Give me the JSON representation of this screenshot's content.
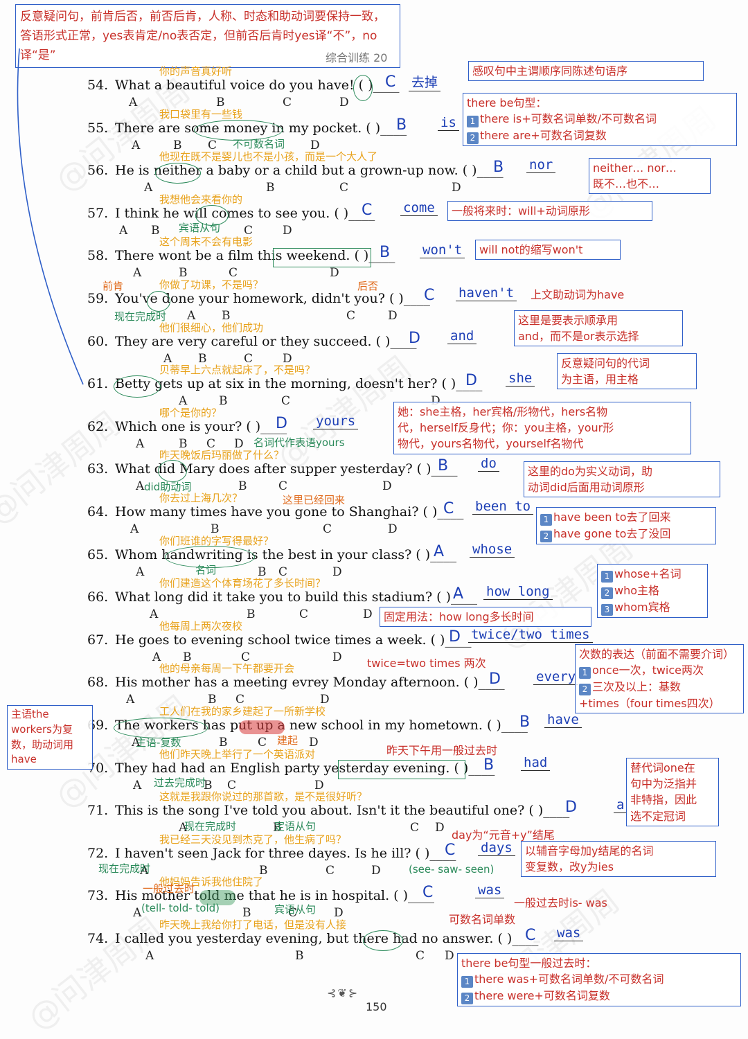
{
  "header": {
    "rule_note": "反意疑问句，前肯后否，前否后肯，人称、时态和助动词要保持一致，答语形式正常，yes表肯定/no表否定，但前否后肯时yes译“不”，no译“是”",
    "section_title": "综合训练 20"
  },
  "watermark_text": "@问津周周",
  "questions": [
    {
      "num": "54.",
      "text": "What a beautiful voice do you have! (   )____",
      "choice": "C",
      "fill": "去掉",
      "trans": "你的声音真好听",
      "letters": [
        "A",
        "B",
        "C",
        "D"
      ]
    },
    {
      "num": "55.",
      "text": "There are some money in my pocket. (   )____",
      "choice": "B",
      "fill": "is",
      "trans": "我口袋里有一些钱",
      "letters": [
        "A",
        "B",
        "C",
        "D"
      ]
    },
    {
      "num": "56.",
      "text": "He is neither a baby or a child but a grown-up now. (   )____",
      "choice": "B",
      "fill": "nor",
      "trans": "他现在既不是婴儿也不是小孩，而是一个大人了",
      "letters": [
        "A",
        "B",
        "C",
        "D"
      ]
    },
    {
      "num": "57.",
      "text": "I think he will comes to see you. (   )____",
      "choice": "C",
      "fill": "come",
      "trans": "我想他会来看你的",
      "letters": [
        "A",
        "B",
        "C",
        "D"
      ]
    },
    {
      "num": "58.",
      "text": "There wont be a film this weekend. (   )____",
      "choice": "B",
      "fill": "won't",
      "trans": "这个周末不会有电影",
      "letters": [
        "A",
        "B",
        "C",
        "D"
      ]
    },
    {
      "num": "59.",
      "text": "You've done your homework, didn't you? (   )____",
      "choice": "C",
      "fill": "haven't",
      "trans": "你做了功课，不是吗？",
      "letters": [
        "A",
        "B",
        "C",
        "D"
      ]
    },
    {
      "num": "60.",
      "text": "They are very careful or they succeed. (   )____",
      "choice": "D",
      "fill": "and",
      "trans": "他们很细心，他们成功",
      "letters": [
        "A",
        "B",
        "C",
        "D"
      ]
    },
    {
      "num": "61.",
      "text": "Betty gets up at six in the morning, doesn't her? (   )____",
      "choice": "D",
      "fill": "she",
      "trans": "贝蒂早上六点就起床了，不是吗？",
      "letters": [
        "A",
        "B",
        "C",
        "D"
      ]
    },
    {
      "num": "62.",
      "text": "Which one is your? (   )____",
      "choice": "D",
      "fill": "yours",
      "trans": "哪个是你的？",
      "letters": [
        "A",
        "B",
        "C",
        "D"
      ]
    },
    {
      "num": "63.",
      "text": "What did Mary does after supper yesterday? (   )____",
      "choice": "B",
      "fill": "do",
      "trans": "昨天晚饭后玛丽做了什么？",
      "letters": [
        "A",
        "B",
        "C",
        "D"
      ]
    },
    {
      "num": "64.",
      "text": "How many times have you gone to Shanghai? (   )____",
      "choice": "C",
      "fill": "been to",
      "trans": "你去过上海几次？",
      "letters": [
        "A",
        "B",
        "C",
        "D"
      ]
    },
    {
      "num": "65.",
      "text": "Whom handwriting is the best in your class? (   )____",
      "choice": "A",
      "fill": "whose",
      "trans": "你们班谁的字写得最好？",
      "letters": [
        "A",
        "B",
        "C",
        "D"
      ]
    },
    {
      "num": "66.",
      "text": "What long did it take you to build this stadium? (   )____",
      "choice": "A",
      "fill": "how long",
      "trans": "你们建造这个体育场花了多长时间？",
      "letters": [
        "A",
        "B",
        "C",
        "D"
      ]
    },
    {
      "num": "67.",
      "text": "He goes to evening school twice times a week. (   )____",
      "choice": "D",
      "fill": "twice/two times",
      "trans": "他每周上两次夜校",
      "letters": [
        "A",
        "B",
        "C",
        "D"
      ]
    },
    {
      "num": "68.",
      "text": "His mother has a meeting evrey Monday afternoon. (   )____",
      "choice": "D",
      "fill": "every",
      "trans": "他的母亲每周一下午都要开会",
      "letters": [
        "A",
        "B",
        "C",
        "D"
      ]
    },
    {
      "num": "69.",
      "text": "The workers has put up a new school in my hometown. (   )____",
      "choice": "B",
      "fill": "have",
      "trans": "工人们在我的家乡建起了一所新学校",
      "letters": [
        "A",
        "B",
        "C",
        "D"
      ]
    },
    {
      "num": "70.",
      "text": "They had had an English party yesterday evening. (   )____",
      "choice": "B",
      "fill": "had",
      "trans": "他们昨天晚上举行了一个英语派对",
      "letters": [
        "A",
        "B",
        "C",
        "D"
      ]
    },
    {
      "num": "71.",
      "text": "This is the song I've told you about. Isn't it the beautiful one? (   )____",
      "choice": "D",
      "fill": "a",
      "trans": "这就是我跟你说过的那首歌，是不是很好听？",
      "letters": [
        "A",
        "B",
        "C",
        "D"
      ]
    },
    {
      "num": "72.",
      "text": "I haven't seen Jack for three dayes. Is he ill? (   )____",
      "choice": "C",
      "fill": "days",
      "trans": "我已经三天没见到杰克了，他生病了吗？",
      "letters": [
        "A",
        "B",
        "C",
        "D"
      ]
    },
    {
      "num": "73.",
      "text": "His mother told me that he is in hospital. (   )____",
      "choice": "C",
      "fill": "was",
      "trans": "他妈妈告诉我他住院了",
      "letters": [
        "A",
        "B",
        "C",
        "D"
      ]
    },
    {
      "num": "74.",
      "text": "I called you yesterday evening, but there had no answer. (   )____",
      "choice": "C",
      "fill": "was",
      "trans": "昨天晚上我给你打了电话，但是没有人接",
      "letters": [
        "A",
        "B",
        "C",
        "D"
      ]
    }
  ],
  "green_labels": {
    "q55_uncount": "不可数名词",
    "q57_clause": "宾语从句",
    "q59_front": "前肯",
    "q59_back": "后否",
    "q59_tense": "现在完成时",
    "q63_aux": "did助动词",
    "q64_note": "这里已经回来",
    "q65_noun": "名词",
    "q69_subj": "主语-复数",
    "q69_built": "建起",
    "q70_tense": "过去完成时",
    "q71_tense": "现在完成时",
    "q71_clause": "定语从句",
    "q72_tense": "现在完成时",
    "q72_forms": "(see- saw- seen)",
    "q73_tense": "一般过去时",
    "q73_forms": "(tell- told- told)",
    "q73_clause": "宾语从句",
    "q62_pron": "名词代作表语yours"
  },
  "notes": {
    "exclaim": "感叹句中主谓顺序同陈述句语序",
    "therebe_title": "there be句型：",
    "therebe_1": "there is+可数名词单数/不可数名词",
    "therebe_2": "there are+可数名词复数",
    "neither_1": "neither… nor…",
    "neither_2": "既不…也不…",
    "will": "一般将来时：will+动词原形",
    "wont": "will not的缩写won't",
    "q59": "上文助动词为have",
    "q60_1": "这里是要表示顺承用",
    "q60_2": "and，而不是or表示选择",
    "q61_1": "反意疑问句的代词",
    "q61_2": "为主语，用主格",
    "q62_1": "她：she主格，her宾格/形物代，hers名物",
    "q62_2": "代，herself反身代；你：you主格，your形",
    "q62_3": "物代，yours名物代，yourself名物代",
    "q63_1": "这里的do为实义动词，助",
    "q63_2": "动词did后面用动词原形",
    "q64_1": "have been to去了回来",
    "q64_2": "have gone to去了没回",
    "q65_1": "whose+名词",
    "q65_2": "who主格",
    "q65_3": "whom宾格",
    "q66": "固定用法：how long多长时间",
    "q67": "twice=two times 两次",
    "q68_title": "次数的表达（前面不需要介词）",
    "q68_1": "once一次，twice两次",
    "q68_2": "三次及以上：基数",
    "q68_3": "+times（four times四次）",
    "q69": "主语the workers为复数，助动词用have",
    "q70": "昨天下午用一般过去时",
    "q71_1": "替代词one在",
    "q71_2": "句中为泛指并",
    "q71_3": "非特指，因此",
    "q71_4": "选不定冠词",
    "q72_a": "day为“元音+y”结尾",
    "q72_1": "以辅音字母加y结尾的名词",
    "q72_2": "变复数，改y为ies",
    "q73": "一般过去时is- was",
    "q73_b": "可数名词单数",
    "q74_title": "there be句型一般过去时：",
    "q74_1": "there was+可数名词单数/不可数名词",
    "q74_2": "there were+可数名词复数",
    "box_num_1": "1",
    "box_num_2": "2",
    "box_num_3": "3"
  },
  "footer": {
    "page_number": "150",
    "ornament": "⊰❦⊱"
  }
}
